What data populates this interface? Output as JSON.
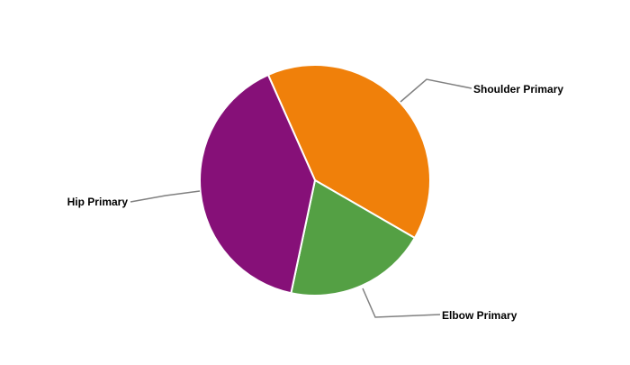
{
  "chart_data": {
    "type": "pie",
    "title": "",
    "start_angle_deg": 336,
    "direction": "clockwise",
    "slices": [
      {
        "label": "Shoulder Primary",
        "value": 40,
        "color": "#F0800A"
      },
      {
        "label": "Elbow Primary",
        "value": 20,
        "color": "#54A044"
      },
      {
        "label": "Hip Primary",
        "value": 40,
        "color": "#861078"
      }
    ],
    "legend": "none",
    "slice_border_color": "#FFFFFF",
    "leader_line_color": "#808080"
  }
}
